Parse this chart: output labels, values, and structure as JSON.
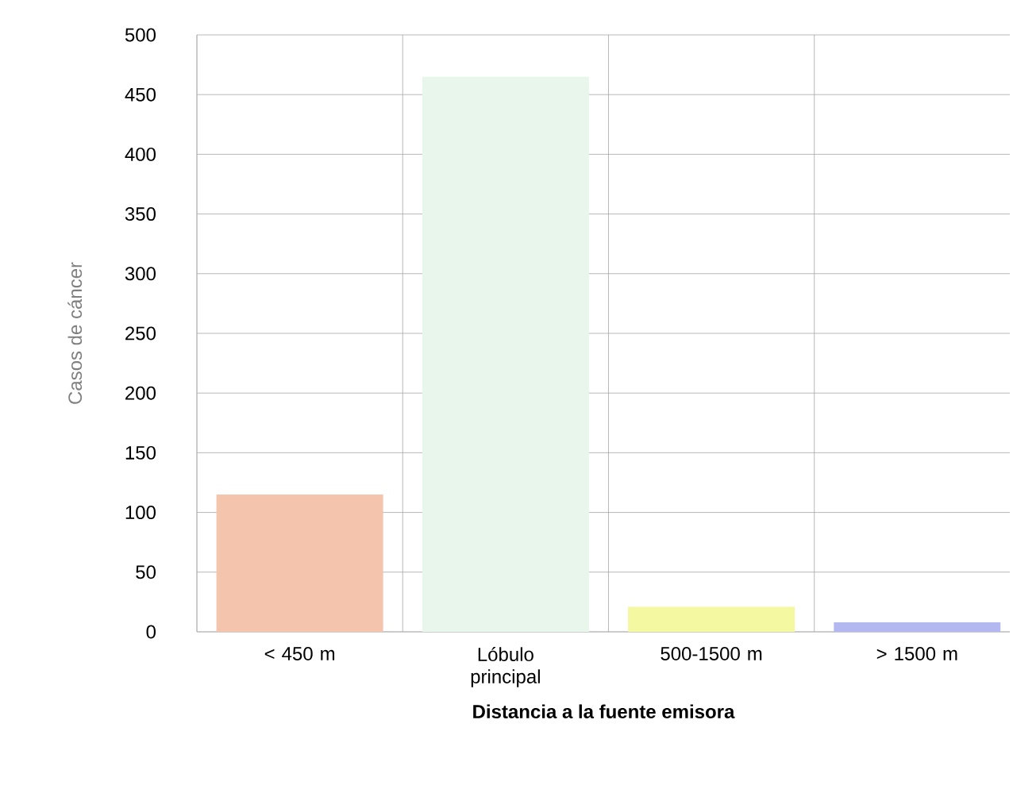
{
  "chart_data": {
    "type": "bar",
    "xlabel": "Distancia a la fuente emisora",
    "ylabel": "Casos de cáncer",
    "categories": [
      "< 450 m",
      "Lóbulo principal",
      "500-1500 m",
      "> 1500 m"
    ],
    "values": [
      115,
      465,
      21,
      8
    ],
    "colors": [
      "#f5c4ad",
      "#e8f6ec",
      "#f4f8a0",
      "#b3b8f0"
    ],
    "ylim": [
      0,
      500
    ],
    "yticks": [
      0,
      50,
      100,
      150,
      200,
      250,
      300,
      350,
      400,
      450,
      500
    ],
    "grid": true
  }
}
